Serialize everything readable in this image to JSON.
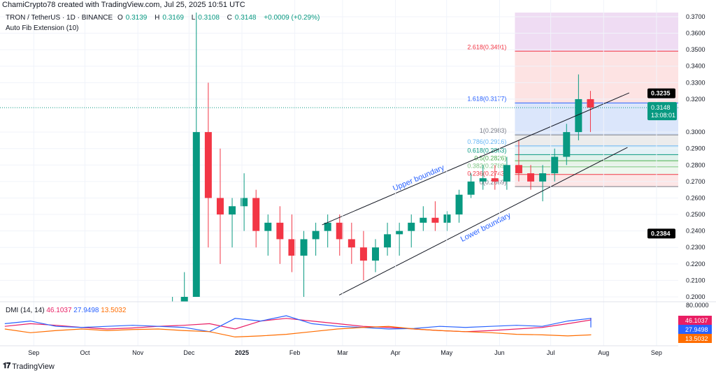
{
  "header": {
    "credit": "ChamiCrypto78 created with TradingView.com, Jul 25, 2025 10:51 UTC",
    "symbol": "TRON / TetherUS · 1D · BINANCE",
    "ohlc": {
      "o_label": "O",
      "o": "0.3139",
      "h_label": "H",
      "h": "0.3169",
      "l_label": "L",
      "l": "0.3108",
      "c_label": "C",
      "c": "0.3148",
      "change": "+0.0009 (+0.29%)"
    },
    "indicator": "Auto Fib Extension (10)"
  },
  "dmi": {
    "label": "DMI (14, 14)",
    "values": [
      "46.1037",
      "27.9498",
      "13.5032"
    ],
    "colors": [
      "#e91e63",
      "#2962ff",
      "#ff6d00"
    ]
  },
  "footer": {
    "brand": "TradingView",
    "logo_text": "17"
  },
  "colors": {
    "up": "#089981",
    "down": "#f23645",
    "price_line": "#089981"
  },
  "chart_data": {
    "type": "candlestick",
    "interval_shown": "weekly approximation of daily candles",
    "ylim": [
      0.2,
      0.37
    ],
    "y_ticks": [
      "0.3700",
      "0.3600",
      "0.3500",
      "0.3400",
      "0.3300",
      "0.3200",
      "0.3000",
      "0.2900",
      "0.2800",
      "0.2700",
      "0.2600",
      "0.2500",
      "0.2400",
      "0.2300",
      "0.2200",
      "0.2100",
      "0.2000"
    ],
    "x_ticks": [
      {
        "label": "Sep",
        "date": "2024-09-01"
      },
      {
        "label": "Oct",
        "date": "2024-10-01"
      },
      {
        "label": "Nov",
        "date": "2024-11-01"
      },
      {
        "label": "Dec",
        "date": "2024-12-01"
      },
      {
        "label": "2025",
        "date": "2025-01-01"
      },
      {
        "label": "Feb",
        "date": "2025-02-01"
      },
      {
        "label": "Mar",
        "date": "2025-03-01"
      },
      {
        "label": "Apr",
        "date": "2025-04-01"
      },
      {
        "label": "May",
        "date": "2025-05-01"
      },
      {
        "label": "Jun",
        "date": "2025-06-01"
      },
      {
        "label": "Jul",
        "date": "2025-07-01"
      },
      {
        "label": "Aug",
        "date": "2025-08-01"
      },
      {
        "label": "Sep",
        "date": "2025-09-01"
      }
    ],
    "candles": [
      [
        "2024-11-18",
        0.175,
        0.2,
        0.17,
        0.195
      ],
      [
        "2024-11-25",
        0.195,
        0.215,
        0.19,
        0.2
      ],
      [
        "2024-12-02",
        0.2,
        0.449,
        0.2,
        0.3
      ],
      [
        "2024-12-09",
        0.3,
        0.33,
        0.23,
        0.26
      ],
      [
        "2024-12-16",
        0.26,
        0.29,
        0.22,
        0.25
      ],
      [
        "2024-12-23",
        0.25,
        0.26,
        0.23,
        0.255
      ],
      [
        "2024-12-30",
        0.255,
        0.275,
        0.24,
        0.26
      ],
      [
        "2025-01-06",
        0.26,
        0.265,
        0.23,
        0.24
      ],
      [
        "2025-01-13",
        0.24,
        0.25,
        0.225,
        0.245
      ],
      [
        "2025-01-20",
        0.245,
        0.255,
        0.22,
        0.235
      ],
      [
        "2025-01-27",
        0.235,
        0.25,
        0.215,
        0.225
      ],
      [
        "2025-02-03",
        0.225,
        0.24,
        0.2,
        0.235
      ],
      [
        "2025-02-10",
        0.235,
        0.245,
        0.225,
        0.24
      ],
      [
        "2025-02-17",
        0.24,
        0.25,
        0.23,
        0.245
      ],
      [
        "2025-02-24",
        0.245,
        0.25,
        0.225,
        0.235
      ],
      [
        "2025-03-03",
        0.235,
        0.245,
        0.22,
        0.23
      ],
      [
        "2025-03-10",
        0.23,
        0.24,
        0.21,
        0.222
      ],
      [
        "2025-03-17",
        0.222,
        0.235,
        0.215,
        0.23
      ],
      [
        "2025-03-24",
        0.23,
        0.245,
        0.225,
        0.238
      ],
      [
        "2025-03-31",
        0.238,
        0.245,
        0.225,
        0.24
      ],
      [
        "2025-04-07",
        0.24,
        0.25,
        0.23,
        0.245
      ],
      [
        "2025-04-14",
        0.245,
        0.255,
        0.24,
        0.248
      ],
      [
        "2025-04-21",
        0.248,
        0.258,
        0.24,
        0.245
      ],
      [
        "2025-04-28",
        0.245,
        0.252,
        0.24,
        0.25
      ],
      [
        "2025-05-05",
        0.25,
        0.265,
        0.245,
        0.262
      ],
      [
        "2025-05-12",
        0.262,
        0.275,
        0.26,
        0.27
      ],
      [
        "2025-05-19",
        0.27,
        0.28,
        0.265,
        0.272
      ],
      [
        "2025-05-26",
        0.272,
        0.28,
        0.265,
        0.27
      ],
      [
        "2025-06-02",
        0.27,
        0.285,
        0.265,
        0.28
      ],
      [
        "2025-06-09",
        0.28,
        0.295,
        0.27,
        0.275
      ],
      [
        "2025-06-16",
        0.275,
        0.28,
        0.265,
        0.27
      ],
      [
        "2025-06-23",
        0.27,
        0.28,
        0.258,
        0.275
      ],
      [
        "2025-06-30",
        0.275,
        0.29,
        0.27,
        0.285
      ],
      [
        "2025-07-07",
        0.285,
        0.305,
        0.28,
        0.3
      ],
      [
        "2025-07-14",
        0.3,
        0.335,
        0.295,
        0.32
      ],
      [
        "2025-07-21",
        0.32,
        0.325,
        0.3,
        0.3148
      ]
    ],
    "current_price": {
      "value": 0.3148,
      "label": "0.3148",
      "countdown": "13:08:01"
    },
    "price_labels": [
      {
        "value": 0.3235,
        "label": "0.3235"
      },
      {
        "value": 0.2384,
        "label": "0.2384"
      }
    ],
    "fib_start_date": "2025-06-10",
    "fib_levels": [
      {
        "ratio": "2.618",
        "price": 0.3491,
        "label": "2.618(0.3491)",
        "color": "#f23645",
        "fill": "#fde3e3"
      },
      {
        "ratio": "1.618",
        "price": 0.3177,
        "label": "1.618(0.3177)",
        "color": "#2962ff",
        "fill": "#dbe6fb"
      },
      {
        "ratio": "1",
        "price": 0.2983,
        "label": "1(0.2983)",
        "color": "#787b86",
        "fill": "#ececec"
      },
      {
        "ratio": "0.786",
        "price": 0.2916,
        "label": "0.786(0.2916)",
        "color": "#64b5f6",
        "fill": "#e3f1f6"
      },
      {
        "ratio": "0.618",
        "price": 0.2863,
        "label": "0.618(0.2863)",
        "color": "#089981",
        "fill": "#e0f2ec"
      },
      {
        "ratio": "0.5",
        "price": 0.2826,
        "label": "0.5(0.2826)",
        "color": "#4caf50",
        "fill": "#e6f3e6"
      },
      {
        "ratio": "0.382",
        "price": 0.2789,
        "label": "0.382(0.2789)",
        "color": "#81c784",
        "fill": "#eef7ee"
      },
      {
        "ratio": "0.236",
        "price": 0.2743,
        "label": "0.236(0.2743)",
        "color": "#f23645",
        "fill": "#fde6e6"
      },
      {
        "ratio": "0",
        "price": 0.2669,
        "label": "0(0.2669)",
        "color": "#787b86",
        "fill": "#ffffff"
      }
    ],
    "fib_top_fill": "#efdcf3",
    "channel": [
      {
        "label": "Upper boundary",
        "from": [
          "2025-02-17",
          0.2437
        ],
        "to": [
          "2025-08-16",
          0.3238
        ],
        "color": "#2962ff"
      },
      {
        "label": "Lower boundary",
        "from": [
          "2025-02-27",
          0.2011
        ],
        "to": [
          "2025-08-15",
          0.2907
        ],
        "color": "#2962ff"
      }
    ],
    "dmi_pane": {
      "top_label": "80.0000",
      "ylim": [
        0,
        80
      ],
      "start": "2024-08-15",
      "step_days": 15,
      "series": [
        {
          "color": "#e91e63",
          "values": [
            30,
            35,
            32,
            28,
            25,
            27,
            30,
            32,
            35,
            25,
            40,
            45,
            40,
            35,
            30,
            28,
            25,
            22,
            20,
            22,
            25,
            28,
            35,
            42,
            46.1
          ]
        },
        {
          "color": "#2962ff",
          "values": [
            35,
            40,
            30,
            28,
            30,
            32,
            30,
            28,
            20,
            45,
            40,
            50,
            35,
            30,
            28,
            25,
            26,
            30,
            28,
            30,
            32,
            30,
            40,
            45,
            27.9
          ]
        },
        {
          "color": "#ff6d00",
          "values": [
            25,
            18,
            22,
            25,
            22,
            24,
            25,
            22,
            20,
            10,
            12,
            15,
            20,
            25,
            28,
            30,
            25,
            22,
            20,
            18,
            15,
            14,
            12,
            14,
            13.5
          ]
        }
      ]
    }
  }
}
